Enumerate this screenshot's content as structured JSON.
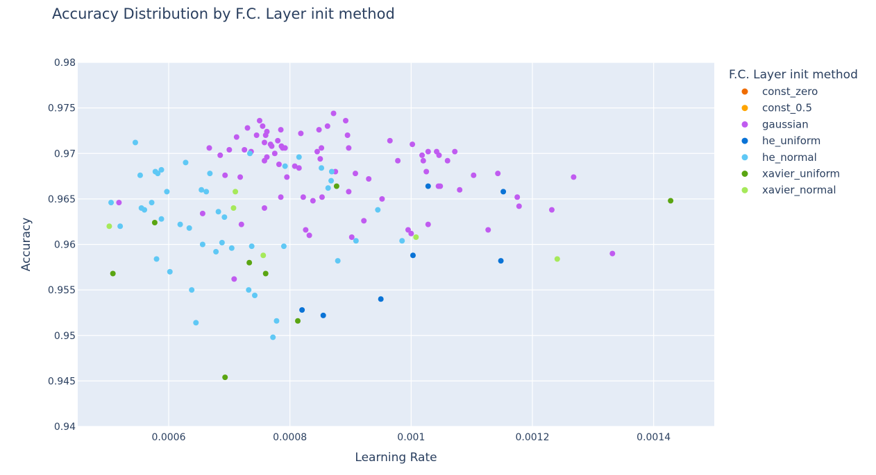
{
  "chart_data": {
    "type": "scatter",
    "title": "Accuracy Distribution by F.C. Layer init method",
    "xlabel": "Learning Rate",
    "ylabel": "Accuracy",
    "xlim": [
      0.00045,
      0.0015
    ],
    "ylim": [
      0.94,
      0.98
    ],
    "x_ticks": [
      0.0006,
      0.0008,
      0.001,
      0.0012,
      0.0014
    ],
    "x_tick_labels": [
      "0.0006",
      "0.0008",
      "0.001",
      "0.0012",
      "0.0014"
    ],
    "y_ticks": [
      0.94,
      0.945,
      0.95,
      0.955,
      0.96,
      0.965,
      0.97,
      0.975,
      0.98
    ],
    "y_tick_labels": [
      "0.94",
      "0.945",
      "0.95",
      "0.955",
      "0.96",
      "0.965",
      "0.97",
      "0.975",
      "0.98"
    ],
    "grid": true,
    "plot_background": "#e5ecf6",
    "legend": {
      "title": "F.C. Layer init method",
      "placement": "right"
    },
    "series": [
      {
        "name": "const_zero",
        "color": "#ef6c00",
        "points": []
      },
      {
        "name": "const_0.5",
        "color": "#ffa500",
        "points": []
      },
      {
        "name": "gaussian",
        "color": "#c05bf0",
        "points": [
          [
            0.000518,
            0.9646
          ],
          [
            0.000667,
            0.9706
          ],
          [
            0.000685,
            0.9698
          ],
          [
            0.0007,
            0.9704
          ],
          [
            0.000712,
            0.9718
          ],
          [
            0.000725,
            0.9704
          ],
          [
            0.00073,
            0.9728
          ],
          [
            0.000736,
            0.9702
          ],
          [
            0.000745,
            0.972
          ],
          [
            0.00075,
            0.9736
          ],
          [
            0.000755,
            0.973
          ],
          [
            0.000758,
            0.9712
          ],
          [
            0.00076,
            0.972
          ],
          [
            0.000762,
            0.9724
          ],
          [
            0.000768,
            0.971
          ],
          [
            0.00077,
            0.9708
          ],
          [
            0.000775,
            0.97
          ],
          [
            0.00078,
            0.9714
          ],
          [
            0.000785,
            0.9726
          ],
          [
            0.000786,
            0.9708
          ],
          [
            0.000788,
            0.9706
          ],
          [
            0.000792,
            0.9706
          ],
          [
            0.000762,
            0.9696
          ],
          [
            0.000758,
            0.9692
          ],
          [
            0.000782,
            0.9688
          ],
          [
            0.000795,
            0.9674
          ],
          [
            0.000808,
            0.9686
          ],
          [
            0.000815,
            0.9684
          ],
          [
            0.000818,
            0.9722
          ],
          [
            0.000845,
            0.9702
          ],
          [
            0.000848,
            0.9726
          ],
          [
            0.000852,
            0.9706
          ],
          [
            0.00085,
            0.9694
          ],
          [
            0.000862,
            0.973
          ],
          [
            0.000872,
            0.9744
          ],
          [
            0.000892,
            0.9736
          ],
          [
            0.000895,
            0.972
          ],
          [
            0.000897,
            0.9706
          ],
          [
            0.000875,
            0.968
          ],
          [
            0.000908,
            0.9678
          ],
          [
            0.00093,
            0.9672
          ],
          [
            0.000965,
            0.9714
          ],
          [
            0.000978,
            0.9692
          ],
          [
            0.001002,
            0.971
          ],
          [
            0.001018,
            0.9698
          ],
          [
            0.00102,
            0.9692
          ],
          [
            0.001028,
            0.9702
          ],
          [
            0.001042,
            0.9702
          ],
          [
            0.001046,
            0.9698
          ],
          [
            0.00106,
            0.9692
          ],
          [
            0.001072,
            0.9702
          ],
          [
            0.001025,
            0.968
          ],
          [
            0.001045,
            0.9664
          ],
          [
            0.001048,
            0.9664
          ],
          [
            0.00108,
            0.966
          ],
          [
            0.001103,
            0.9676
          ],
          [
            0.001143,
            0.9678
          ],
          [
            0.001175,
            0.9652
          ],
          [
            0.001178,
            0.9642
          ],
          [
            0.001232,
            0.9638
          ],
          [
            0.001268,
            0.9674
          ],
          [
            0.001028,
            0.9622
          ],
          [
            0.001127,
            0.9616
          ],
          [
            0.000995,
            0.9616
          ],
          [
            0.001,
            0.9612
          ],
          [
            0.000902,
            0.9608
          ],
          [
            0.000922,
            0.9626
          ],
          [
            0.000952,
            0.965
          ],
          [
            0.000897,
            0.9658
          ],
          [
            0.000853,
            0.9652
          ],
          [
            0.000838,
            0.9648
          ],
          [
            0.000822,
            0.9652
          ],
          [
            0.000826,
            0.9616
          ],
          [
            0.000832,
            0.961
          ],
          [
            0.000785,
            0.9652
          ],
          [
            0.000758,
            0.964
          ],
          [
            0.000693,
            0.9676
          ],
          [
            0.000718,
            0.9674
          ],
          [
            0.00072,
            0.9622
          ],
          [
            0.000656,
            0.9634
          ],
          [
            0.000708,
            0.9562
          ],
          [
            0.001332,
            0.959
          ]
        ]
      },
      {
        "name": "he_uniform",
        "color": "#0a73d6",
        "points": [
          [
            0.001028,
            0.9664
          ],
          [
            0.001152,
            0.9658
          ],
          [
            0.001003,
            0.9588
          ],
          [
            0.001148,
            0.9582
          ],
          [
            0.00095,
            0.954
          ],
          [
            0.00082,
            0.9528
          ],
          [
            0.000855,
            0.9522
          ]
        ]
      },
      {
        "name": "he_normal",
        "color": "#5fc8f5",
        "points": [
          [
            0.000505,
            0.9646
          ],
          [
            0.00052,
            0.962
          ],
          [
            0.000545,
            0.9712
          ],
          [
            0.000553,
            0.9676
          ],
          [
            0.000555,
            0.964
          ],
          [
            0.00056,
            0.9638
          ],
          [
            0.000572,
            0.9646
          ],
          [
            0.000578,
            0.968
          ],
          [
            0.000582,
            0.9678
          ],
          [
            0.000588,
            0.9682
          ],
          [
            0.000588,
            0.9628
          ],
          [
            0.000597,
            0.9658
          ],
          [
            0.000602,
            0.957
          ],
          [
            0.00058,
            0.9584
          ],
          [
            0.000619,
            0.9622
          ],
          [
            0.000628,
            0.969
          ],
          [
            0.000634,
            0.9618
          ],
          [
            0.000638,
            0.955
          ],
          [
            0.000645,
            0.9514
          ],
          [
            0.000654,
            0.966
          ],
          [
            0.000662,
            0.9658
          ],
          [
            0.000668,
            0.9678
          ],
          [
            0.000656,
            0.96
          ],
          [
            0.000682,
            0.9636
          ],
          [
            0.000692,
            0.963
          ],
          [
            0.000688,
            0.9602
          ],
          [
            0.000678,
            0.9592
          ],
          [
            0.000704,
            0.9596
          ],
          [
            0.000734,
            0.97
          ],
          [
            0.000737,
            0.9598
          ],
          [
            0.000732,
            0.955
          ],
          [
            0.000742,
            0.9544
          ],
          [
            0.000778,
            0.9516
          ],
          [
            0.000772,
            0.9498
          ],
          [
            0.000792,
            0.9686
          ],
          [
            0.000815,
            0.9696
          ],
          [
            0.000852,
            0.9684
          ],
          [
            0.000868,
            0.967
          ],
          [
            0.000869,
            0.968
          ],
          [
            0.000863,
            0.9662
          ],
          [
            0.00079,
            0.9598
          ],
          [
            0.000879,
            0.9582
          ],
          [
            0.000909,
            0.9604
          ],
          [
            0.000945,
            0.9638
          ],
          [
            0.000985,
            0.9604
          ]
        ]
      },
      {
        "name": "xavier_uniform",
        "color": "#5aa512",
        "points": [
          [
            0.000508,
            0.9568
          ],
          [
            0.000577,
            0.9624
          ],
          [
            0.000693,
            0.9454
          ],
          [
            0.000733,
            0.958
          ],
          [
            0.00076,
            0.9568
          ],
          [
            0.000813,
            0.9516
          ],
          [
            0.000877,
            0.9664
          ],
          [
            0.001428,
            0.9648
          ]
        ]
      },
      {
        "name": "xavier_normal",
        "color": "#a6e95a",
        "points": [
          [
            0.000502,
            0.962
          ],
          [
            0.000707,
            0.964
          ],
          [
            0.00071,
            0.9658
          ],
          [
            0.000756,
            0.9588
          ],
          [
            0.001008,
            0.9608
          ],
          [
            0.001241,
            0.9584
          ]
        ]
      }
    ]
  }
}
